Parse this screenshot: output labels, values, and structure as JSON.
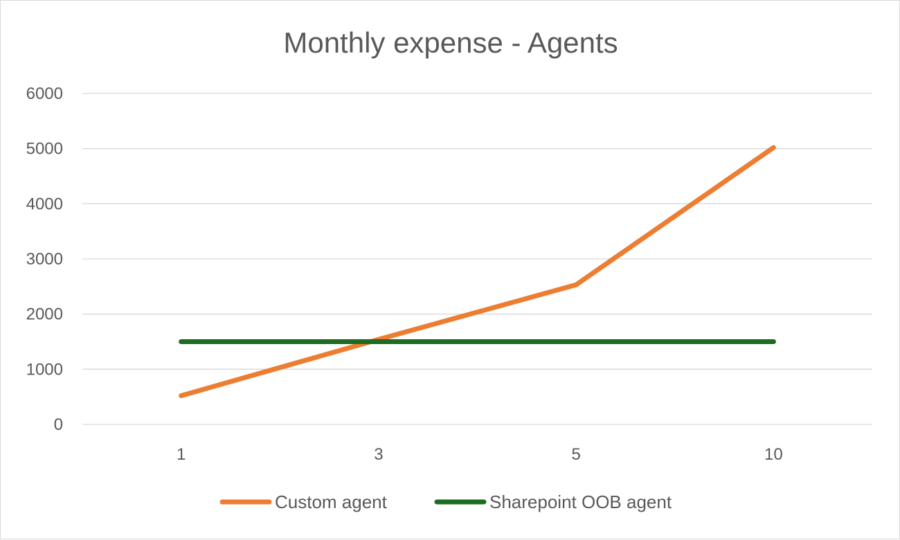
{
  "chart_data": {
    "type": "line",
    "title": "Monthly expense - Agents",
    "xlabel": "",
    "ylabel": "",
    "categories": [
      "1",
      "3",
      "5",
      "10"
    ],
    "ylim": [
      0,
      6000
    ],
    "yticks": [
      "0",
      "1000",
      "2000",
      "3000",
      "4000",
      "5000",
      "6000"
    ],
    "grid": true,
    "legend_position": "bottom",
    "series": [
      {
        "name": "Custom agent",
        "values": [
          520,
          1540,
          2530,
          5020
        ],
        "color": "#ed7d31"
      },
      {
        "name": "Sharepoint OOB agent",
        "values": [
          1500,
          1500,
          1500,
          1500
        ],
        "color": "#1e6b23"
      }
    ]
  }
}
